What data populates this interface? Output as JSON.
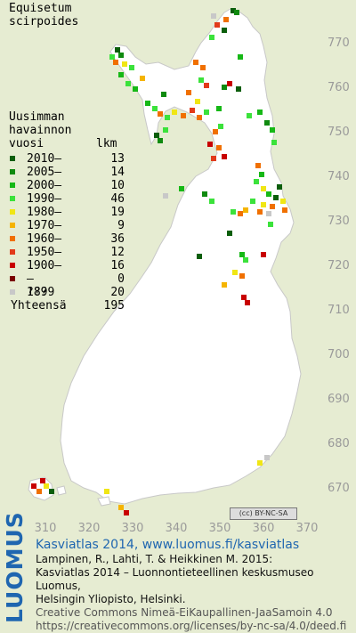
{
  "species": {
    "line1": "Equisetum",
    "line2": "scirpoides"
  },
  "legend": {
    "title": [
      "Uusimman",
      "havainnon",
      "vuosi"
    ],
    "count_header": "lkm",
    "rows": [
      {
        "label": "2010–",
        "count": "13",
        "color": "#0b5e0b"
      },
      {
        "label": "2005–",
        "count": "14",
        "color": "#0f8a0f"
      },
      {
        "label": "2000–",
        "count": "10",
        "color": "#16b816"
      },
      {
        "label": "1990–",
        "count": "46",
        "color": "#3be23b"
      },
      {
        "label": "1980–",
        "count": "19",
        "color": "#f0e614"
      },
      {
        "label": "1970–",
        "count": "9",
        "color": "#f5b400"
      },
      {
        "label": "1960–",
        "count": "36",
        "color": "#f07000"
      },
      {
        "label": "1950–",
        "count": "12",
        "color": "#e23a1a"
      },
      {
        "label": "1900–",
        "count": "16",
        "color": "#c80000"
      },
      {
        "label": "–1899",
        "count": "0",
        "color": "#7a0000"
      },
      {
        "label": "???",
        "count": "20",
        "color": "#c8c8c8"
      }
    ],
    "total_label": "Yhteensä",
    "total_count": "195"
  },
  "axes": {
    "y_labels": [
      "770",
      "760",
      "750",
      "740",
      "730",
      "720",
      "710",
      "700",
      "690",
      "680",
      "670"
    ],
    "x_labels": [
      "310",
      "320",
      "330",
      "340",
      "350",
      "360",
      "370"
    ]
  },
  "colors": {
    "land": "#ffffff",
    "background": "#e6ecd2",
    "brand": "#1f66b0"
  },
  "cc_badge": "(cc) BY-NC-SA",
  "credits": {
    "logo": "LUOMUS",
    "line1": "Kasviatlas 2014, www.luomus.fi/kasviatlas",
    "line2": "Lampinen, R., Lahti, T. & Heikkinen M. 2015:",
    "line3": "Kasviatlas 2014 – Luonnontieteellinen keskusmuseo Luomus,",
    "line4": "Helsingin Yliopisto, Helsinki.",
    "line5": "Creative Commons Nimeä-EiKaupallinen-JaaSamoin 4.0",
    "line6": "https://creativecommons.org/licenses/by-nc-sa/4.0/deed.fi"
  }
}
